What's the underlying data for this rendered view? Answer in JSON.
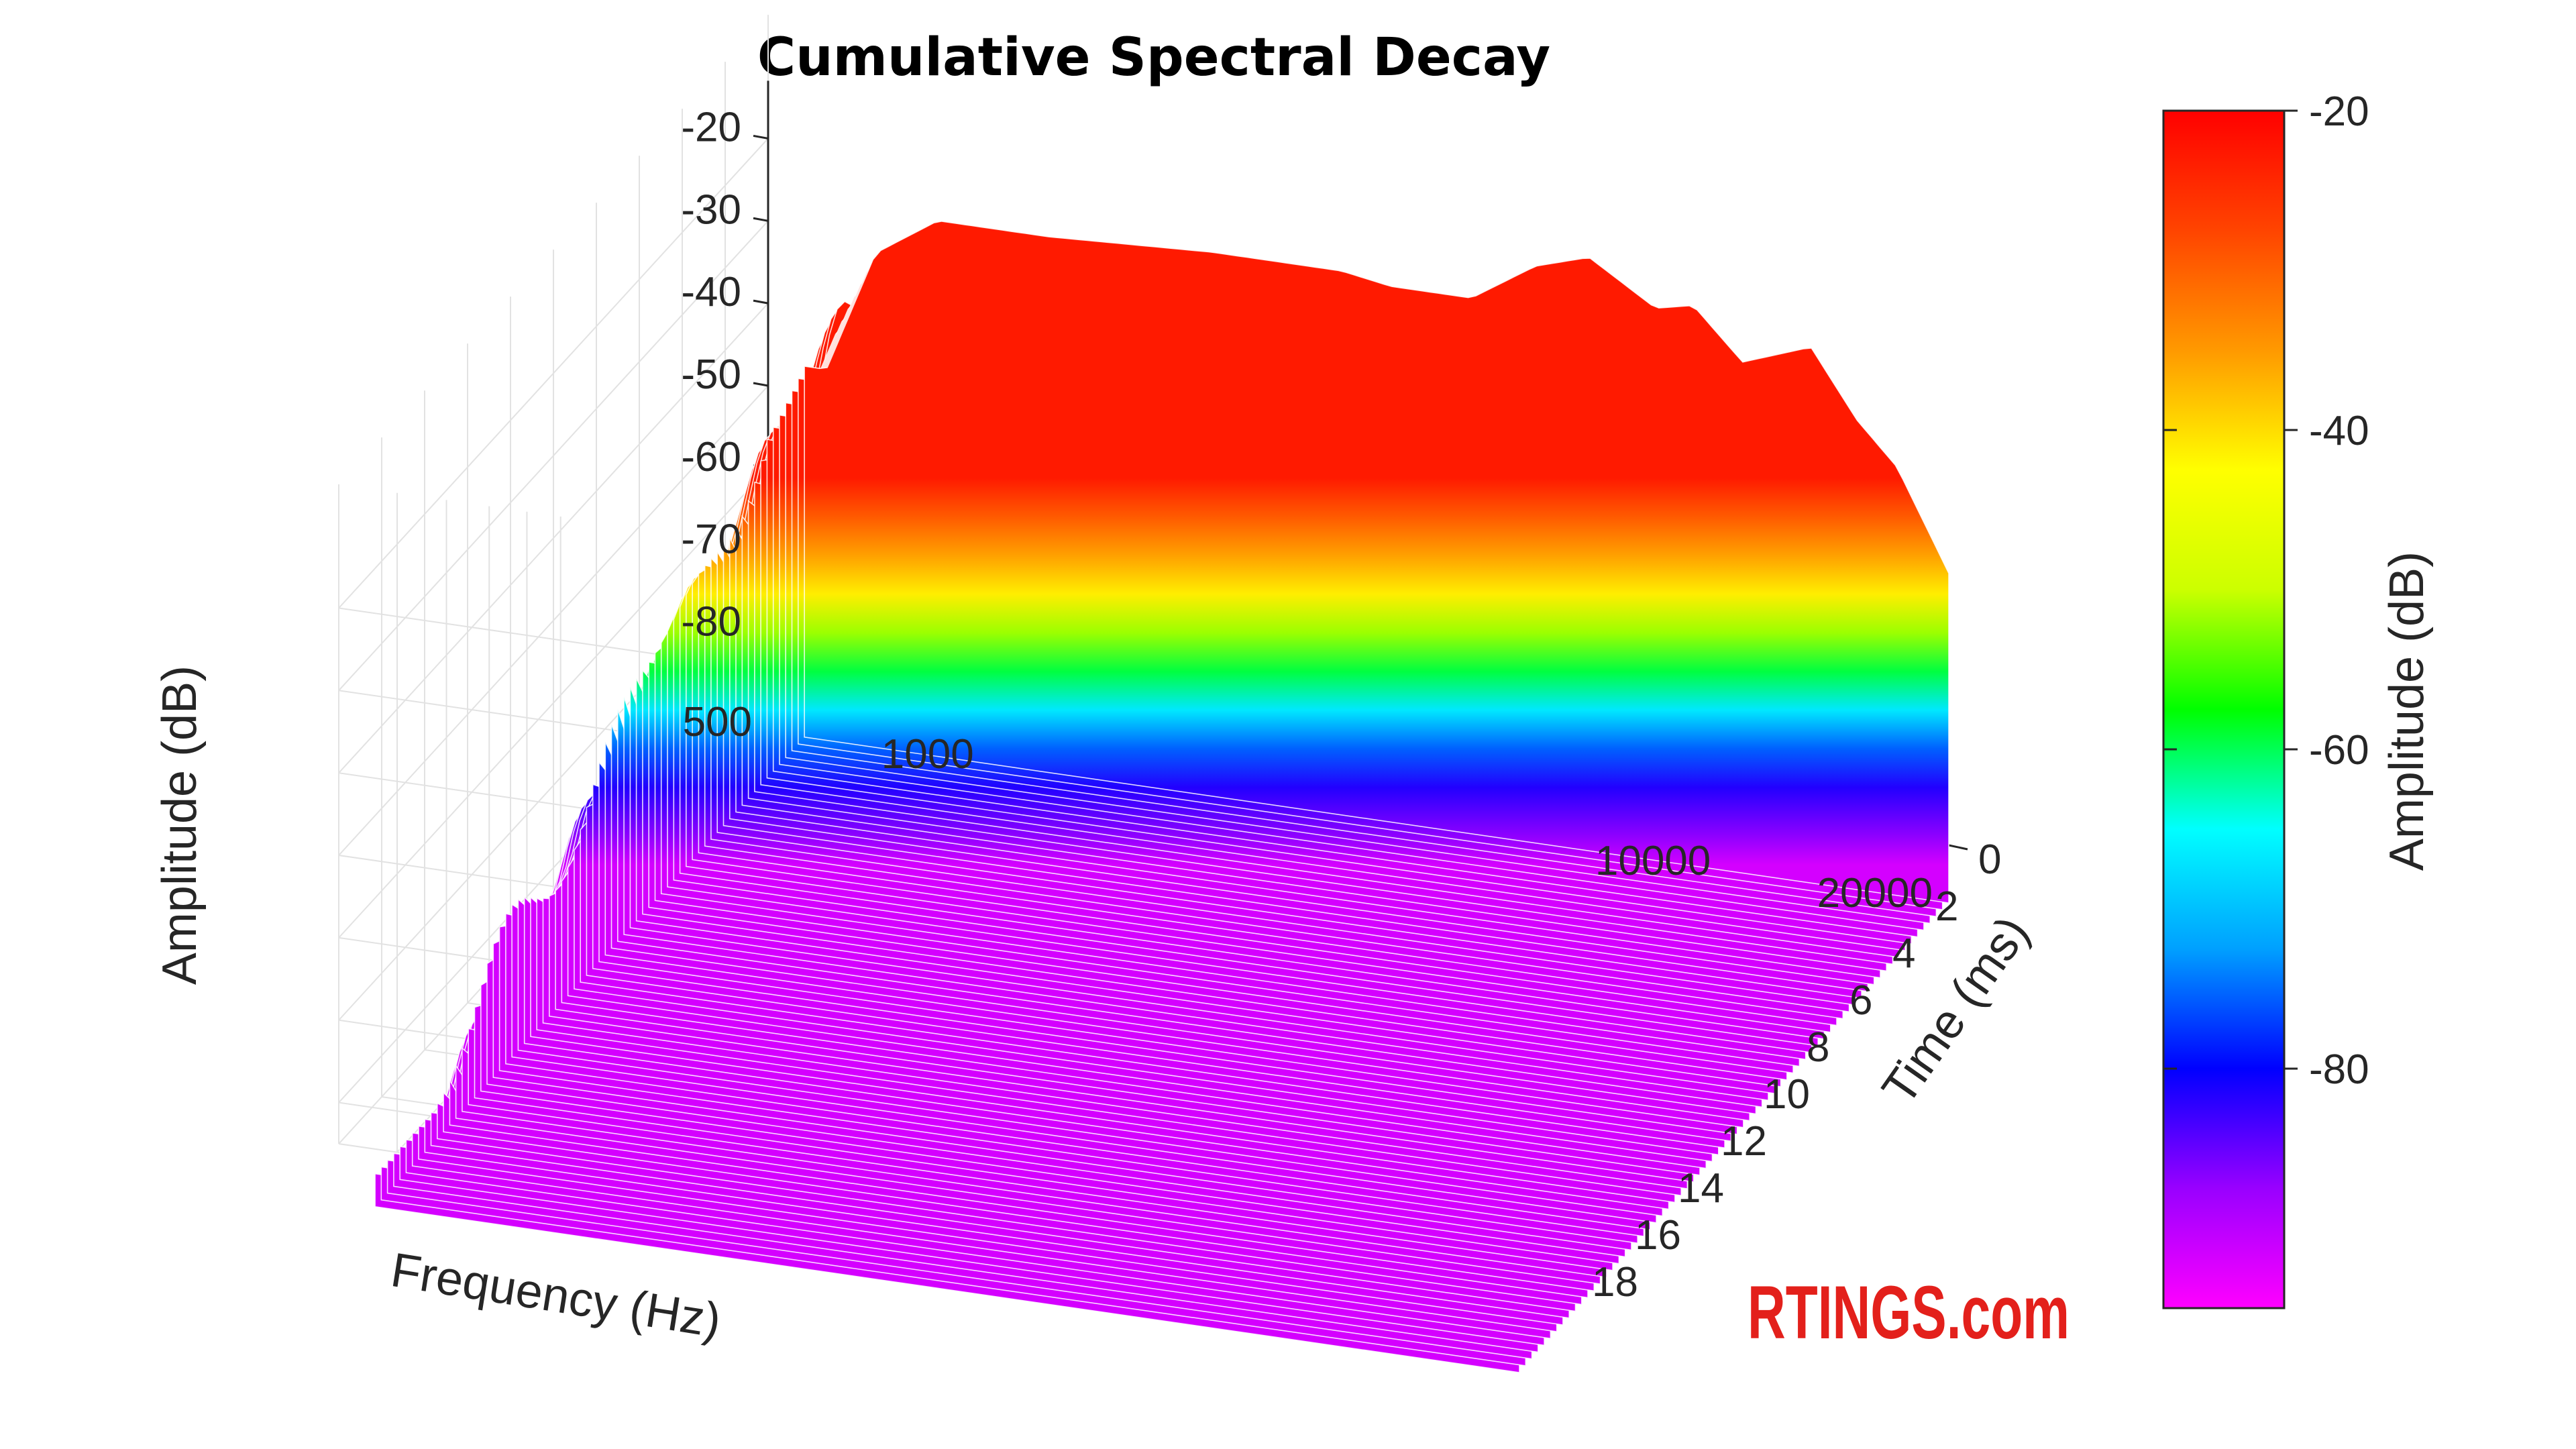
{
  "chart_data": {
    "type": "waterfall-3d",
    "title": "Cumulative Spectral Decay",
    "x_axis": {
      "label": "Frequency (Hz)",
      "scale": "log",
      "range": [
        500,
        20000
      ],
      "ticks": [
        "500",
        "1000",
        "10000",
        "20000"
      ]
    },
    "y_axis": {
      "label": "Time (ms)",
      "range": [
        0,
        20
      ],
      "ticks": [
        "0",
        "2",
        "4",
        "6",
        "8",
        "10",
        "12",
        "14",
        "16",
        "18"
      ]
    },
    "z_axis": {
      "label": "Amplitude (dB)",
      "range": [
        -85,
        -15
      ],
      "ticks": [
        "-20",
        "-30",
        "-40",
        "-50",
        "-60",
        "-70",
        "-80"
      ]
    },
    "colorbar": {
      "label": "Amplitude (dB)",
      "range": [
        -95,
        -20
      ],
      "ticks": [
        "-20",
        "-40",
        "-60",
        "-80"
      ],
      "colormap": [
        "#ff00ff",
        "#9900ff",
        "#0000ff",
        "#00a0ff",
        "#00ffff",
        "#00ff00",
        "#ccff00",
        "#ffff00",
        "#ff9900",
        "#ff4400",
        "#ff0000"
      ]
    },
    "grid": true,
    "initial_response_db": [
      {
        "freq": 600,
        "db": -47
      },
      {
        "freq": 700,
        "db": -32
      },
      {
        "freq": 850,
        "db": -27
      },
      {
        "freq": 1200,
        "db": -27
      },
      {
        "freq": 2000,
        "db": -26
      },
      {
        "freq": 3000,
        "db": -26
      },
      {
        "freq": 3500,
        "db": -27
      },
      {
        "freq": 4500,
        "db": -27
      },
      {
        "freq": 5500,
        "db": -22
      },
      {
        "freq": 6500,
        "db": -20
      },
      {
        "freq": 8000,
        "db": -25
      },
      {
        "freq": 9000,
        "db": -24
      },
      {
        "freq": 10500,
        "db": -30
      },
      {
        "freq": 13000,
        "db": -27
      },
      {
        "freq": 15000,
        "db": -35
      },
      {
        "freq": 17000,
        "db": -40
      },
      {
        "freq": 20000,
        "db": -52
      }
    ]
  },
  "watermark": "RTINGS.com"
}
